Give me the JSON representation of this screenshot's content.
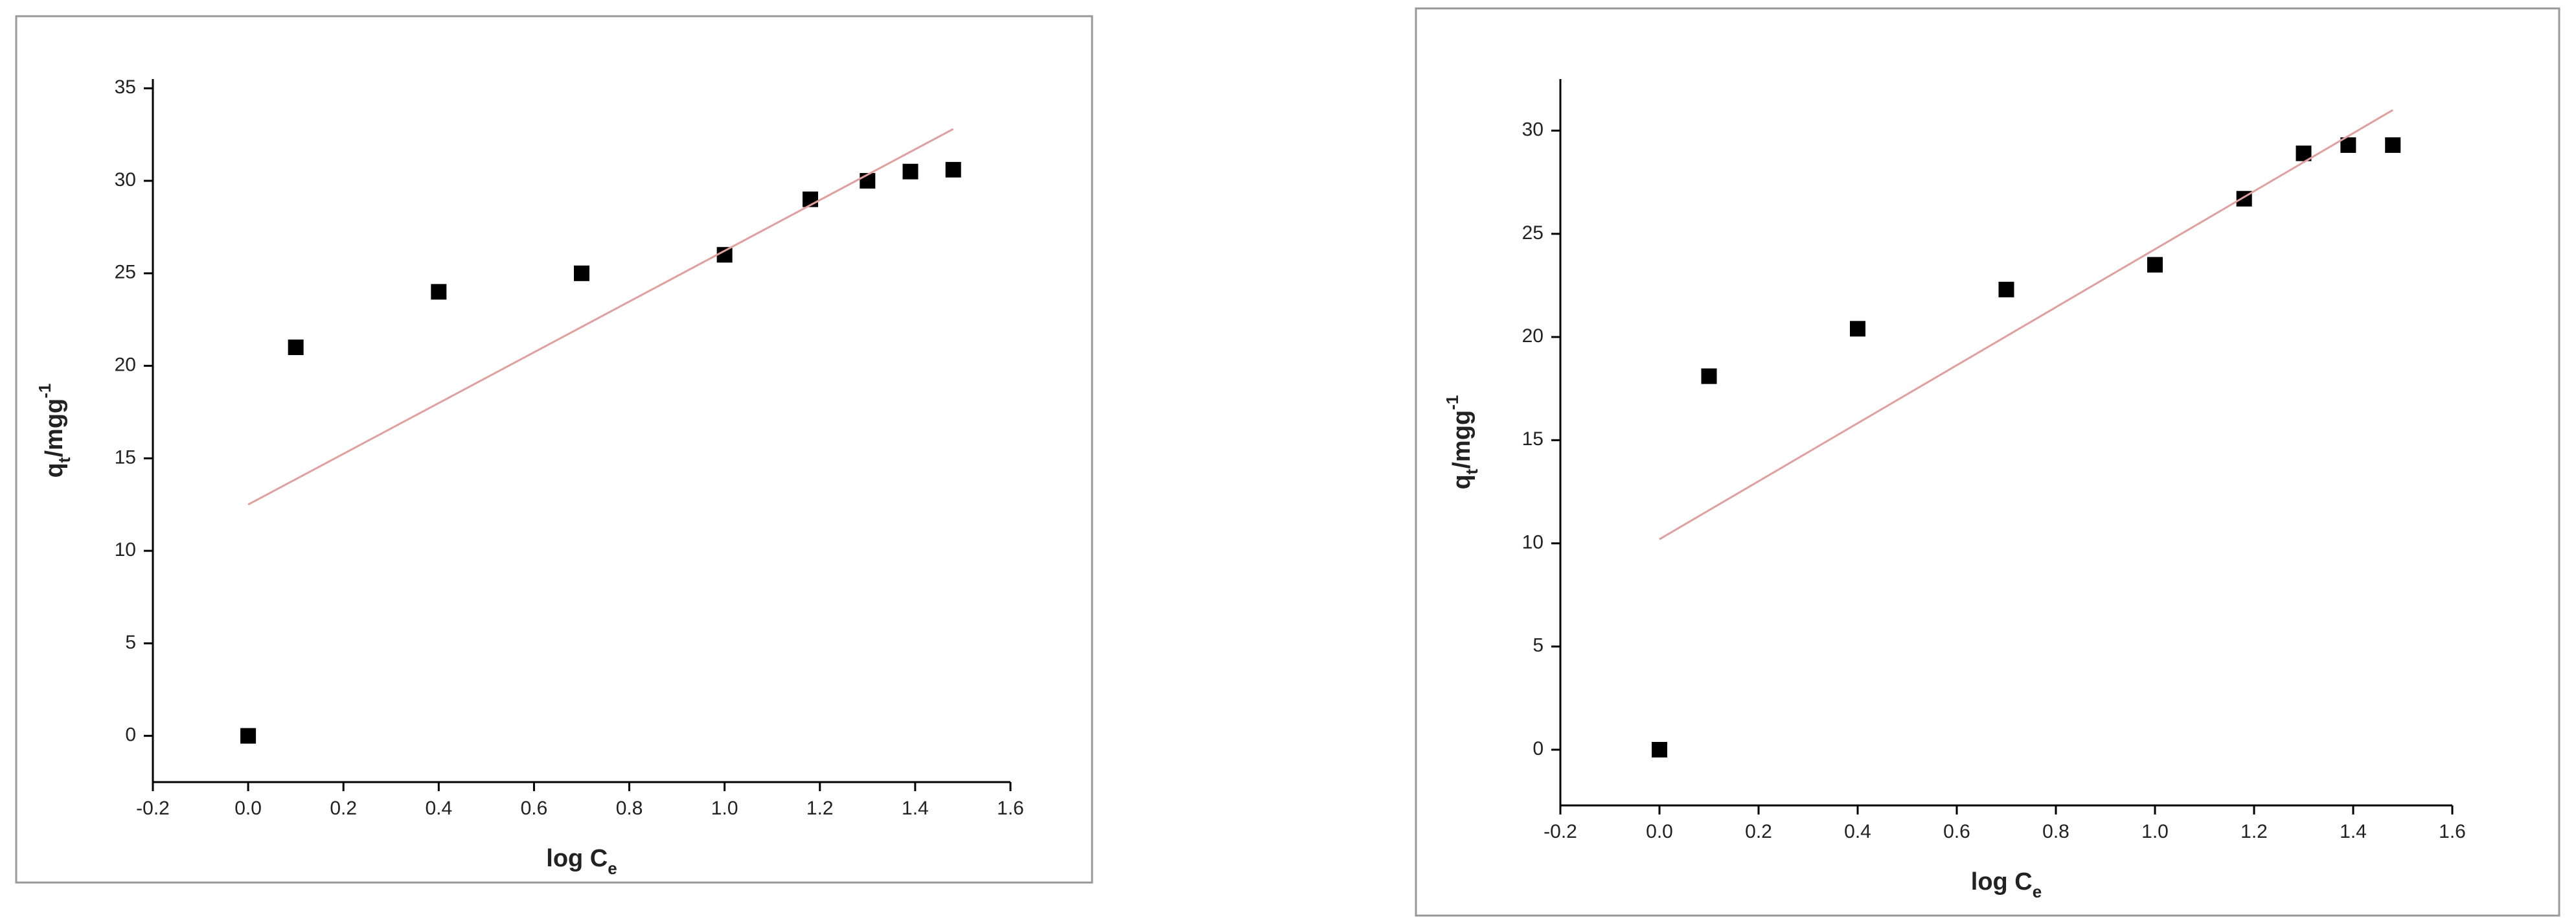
{
  "chart_data": [
    {
      "type": "scatter",
      "x_label": [
        "log C",
        "e"
      ],
      "y_label": [
        "q",
        "t",
        "/mgg",
        "-1"
      ],
      "xlim": [
        -0.2,
        1.6
      ],
      "xticks": [
        -0.2,
        {
          "value": 0,
          "label": "0.0"
        },
        0.2,
        0.4,
        0.6,
        0.8,
        {
          "value": 1,
          "label": "1.0"
        },
        1.2,
        1.4,
        1.6
      ],
      "ylim": [
        -2.5,
        35.5
      ],
      "yticks": [
        0,
        5,
        10,
        15,
        20,
        25,
        30,
        35
      ],
      "series": [
        {
          "type": "scatter",
          "color": "#000000",
          "x": [
            0,
            0.1,
            0.4,
            0.7,
            1.0,
            1.18,
            1.3,
            1.39,
            1.48
          ],
          "values": [
            0,
            21,
            24,
            25,
            26,
            29,
            30,
            30.5,
            30.6
          ]
        },
        {
          "type": "line",
          "color": "#e0a0a0",
          "x": [
            0,
            1.48
          ],
          "values": [
            12.5,
            32.8
          ]
        }
      ]
    },
    {
      "type": "scatter",
      "x_label": [
        "log C",
        "e"
      ],
      "y_label": [
        "q",
        "t",
        "/mgg",
        "-1"
      ],
      "xlim": [
        -0.2,
        1.6
      ],
      "xticks": [
        -0.2,
        {
          "value": 0,
          "label": "0.0"
        },
        0.2,
        0.4,
        0.6,
        0.8,
        {
          "value": 1,
          "label": "1.0"
        },
        1.2,
        1.4,
        1.6
      ],
      "ylim": [
        -2.7,
        32.5
      ],
      "yticks": [
        0,
        5,
        10,
        15,
        20,
        25,
        30
      ],
      "series": [
        {
          "type": "scatter",
          "color": "#000000",
          "x": [
            0,
            0.1,
            0.4,
            0.7,
            1.0,
            1.18,
            1.3,
            1.39,
            1.48
          ],
          "values": [
            0,
            18.1,
            20.4,
            22.3,
            23.5,
            26.7,
            28.9,
            29.3,
            29.3
          ]
        },
        {
          "type": "line",
          "color": "#e0a0a0",
          "x": [
            0,
            1.48
          ],
          "values": [
            10.2,
            31
          ]
        }
      ]
    }
  ]
}
